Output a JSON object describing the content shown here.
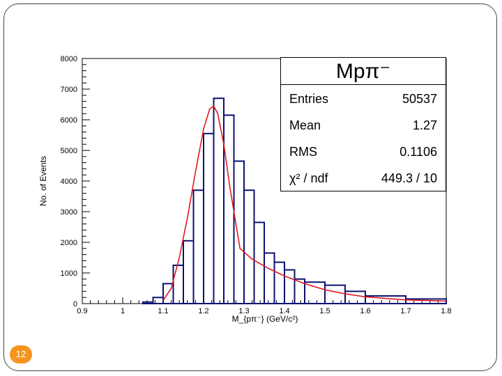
{
  "slide": {
    "page_number": "12"
  },
  "chart_data": {
    "type": "histogram",
    "title": "",
    "xlabel": "M_{pπ⁻} (GeV/c²)",
    "ylabel": "No. of Events",
    "xlim": [
      0.9,
      1.8
    ],
    "ylim": [
      0,
      8000
    ],
    "x_ticks": [
      "0.9",
      "1",
      "1.1",
      "1.2",
      "1.3",
      "1.4",
      "1.5",
      "1.6",
      "1.7",
      "1.8"
    ],
    "y_ticks": [
      "0",
      "1000",
      "2000",
      "3000",
      "4000",
      "5000",
      "6000",
      "7000",
      "8000"
    ],
    "grid": false,
    "bin_edges": [
      1.05,
      1.075,
      1.1,
      1.125,
      1.15,
      1.175,
      1.2,
      1.225,
      1.25,
      1.275,
      1.3,
      1.325,
      1.35,
      1.375,
      1.4,
      1.425,
      1.45,
      1.5,
      1.55,
      1.6,
      1.7,
      1.8
    ],
    "counts": [
      50,
      200,
      650,
      1250,
      2050,
      3700,
      5550,
      6700,
      6150,
      4650,
      3700,
      2650,
      1650,
      1350,
      1100,
      800,
      700,
      600,
      400,
      250,
      150
    ],
    "series": [
      {
        "name": "histogram",
        "color": "#0a1070"
      },
      {
        "name": "fit",
        "color": "#e31a1c",
        "x": [
          1.1,
          1.12,
          1.14,
          1.16,
          1.18,
          1.2,
          1.215,
          1.225,
          1.235,
          1.25,
          1.265,
          1.28,
          1.29,
          1.32,
          1.36,
          1.4,
          1.45,
          1.5,
          1.55,
          1.6,
          1.7,
          1.8
        ],
        "y": [
          100,
          500,
          1500,
          2800,
          4300,
          5700,
          6350,
          6450,
          6200,
          5200,
          3800,
          2600,
          1800,
          1450,
          1150,
          900,
          650,
          450,
          320,
          220,
          120,
          80
        ]
      }
    ],
    "stats_box": {
      "title": "Mpπ⁻",
      "rows": [
        {
          "label": "Entries",
          "value": "50537"
        },
        {
          "label": "Mean",
          "value": "1.27"
        },
        {
          "label": "RMS",
          "value": "0.1106"
        },
        {
          "label": "χ² / ndf",
          "value": "449.3 / 10"
        }
      ]
    }
  }
}
